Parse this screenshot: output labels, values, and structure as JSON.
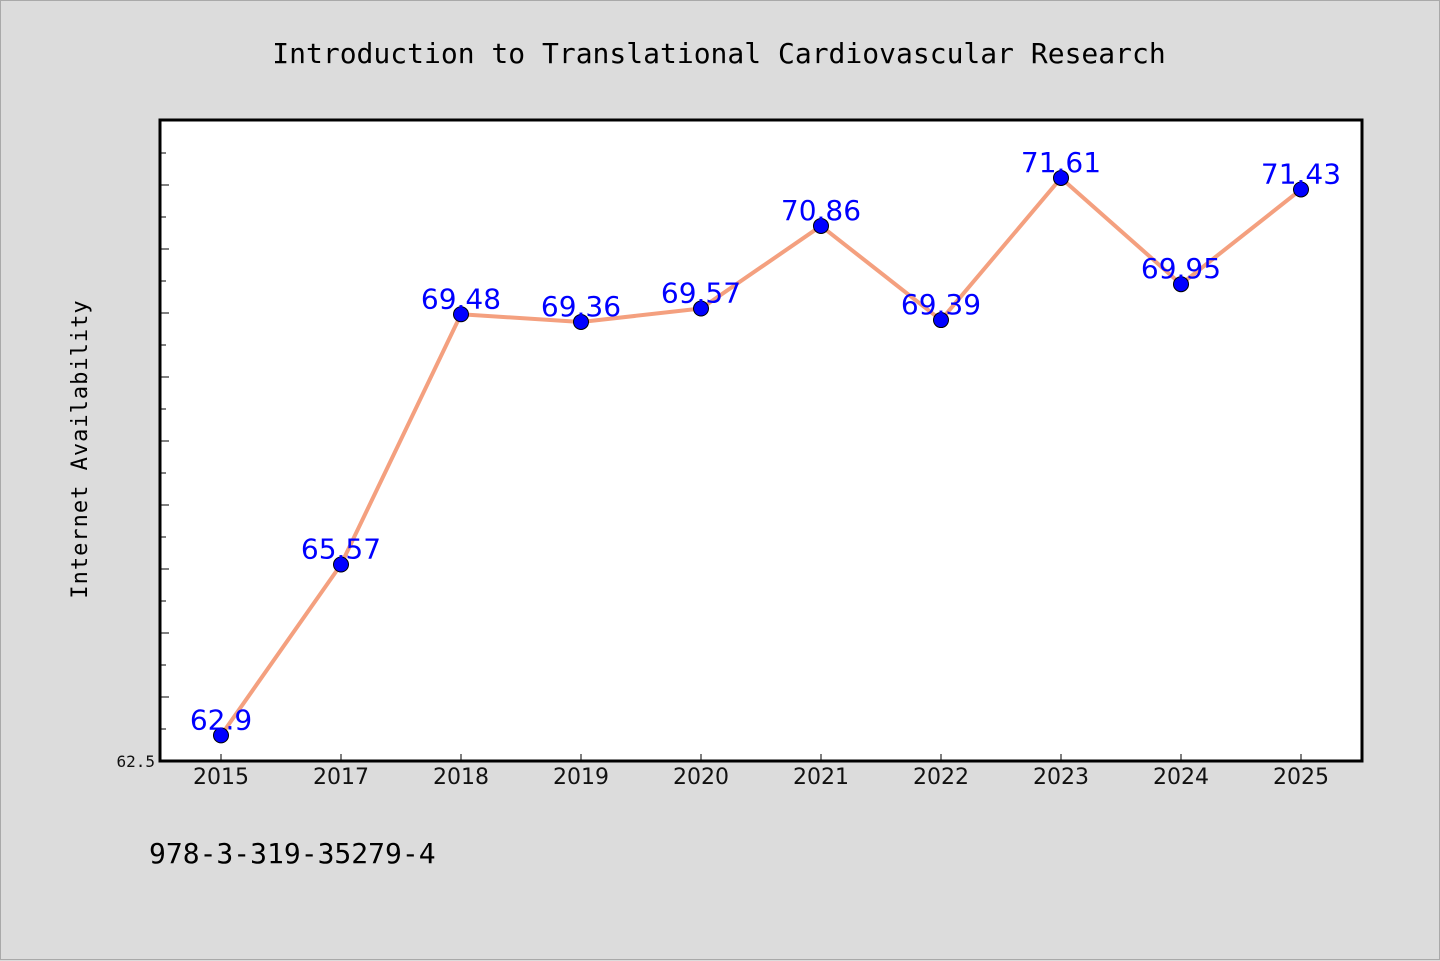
{
  "chart_data": {
    "type": "line",
    "title": "Introduction to Translational Cardiovascular Research",
    "xlabel": "",
    "ylabel": "Internet Availability",
    "categories": [
      "2015",
      "2017",
      "2018",
      "2019",
      "2020",
      "2021",
      "2022",
      "2023",
      "2024",
      "2025"
    ],
    "series": [
      {
        "values": [
          62.9,
          65.57,
          69.48,
          69.36,
          69.57,
          70.86,
          69.39,
          71.61,
          69.95,
          71.43
        ],
        "data_labels": [
          "62.9",
          "65.57",
          "69.48",
          "69.36",
          "69.57",
          "70.86",
          "69.39",
          "71.61",
          "69.95",
          "71.43"
        ]
      }
    ],
    "ylim": [
      62.5,
      72.5
    ],
    "yticks_labeled": [
      "62.5"
    ],
    "grid": false,
    "legend": "none",
    "colors": {
      "line": "#f4a07f",
      "marker": "#0000ff",
      "data_label": "#0000ff",
      "plot_bg": "#ffffff",
      "page_bg": "#dcdcdc"
    }
  },
  "footer": {
    "isbn": "978-3-319-35279-4"
  }
}
